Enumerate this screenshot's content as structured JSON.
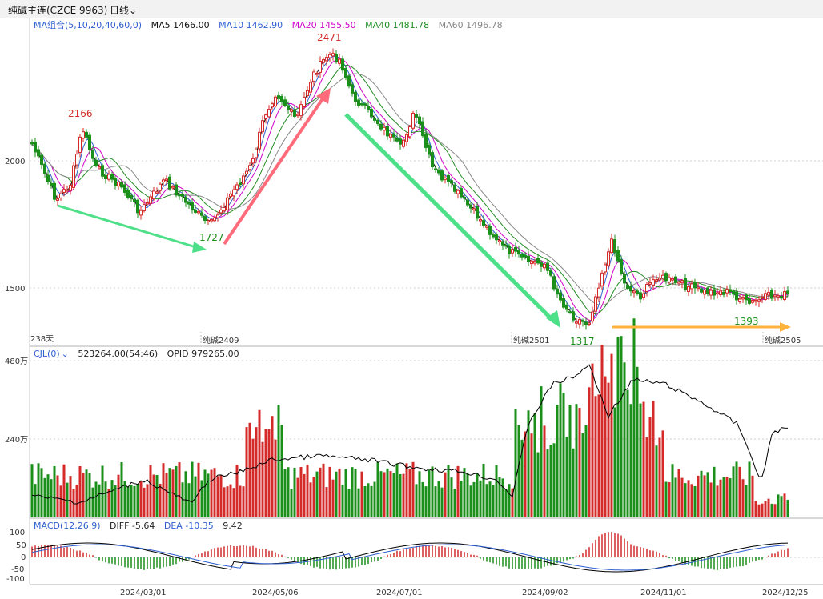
{
  "header": {
    "title": "纯碱主连(CZCE 9963)",
    "period": "日线"
  },
  "colors": {
    "up": "#d42a2a",
    "down": "#1a8f1a",
    "ma5": "#111111",
    "ma10": "#2f5fd0",
    "ma20": "#d000c8",
    "ma40": "#228b22",
    "ma60": "#888888",
    "arrow_green": "#4ee089",
    "arrow_red": "#ff6b7a",
    "arrow_orange": "#ffb23c"
  },
  "main_legend": {
    "group": "MA组合(5,10,20,40,60,0)",
    "ma5": "MA5 1466.00",
    "ma10": "MA10 1462.90",
    "ma20": "MA20 1455.50",
    "ma40": "MA40 1481.78",
    "ma60": "MA60 1496.78"
  },
  "price_axis": {
    "top_label": "2000",
    "bottom_label": "1500"
  },
  "annotations": {
    "high1": "2166",
    "high2": "2471",
    "low1": "1727",
    "low2": "1317",
    "low3": "1393"
  },
  "days_label": "238天",
  "contract_labels": {
    "c1": "纯碱2409",
    "c2": "纯碱2501",
    "c3": "纯碱2505"
  },
  "volume": {
    "name": "CJL(0)",
    "values": "523264.00(54:46)",
    "opid": "OPID 979265.00",
    "axis_top": "480万",
    "axis_mid": "240万"
  },
  "macd": {
    "name": "MACD(12,26,9)",
    "diff": "DIFF -5.64",
    "dea": "DEA -10.35",
    "value": "9.42",
    "axis": [
      "100",
      "50",
      "0",
      "-50",
      "-100"
    ]
  },
  "dates": [
    "2024/03/01",
    "2024/05/06",
    "2024/07/01",
    "2024/09/02",
    "2024/11/01",
    "2024/12/25"
  ]
}
